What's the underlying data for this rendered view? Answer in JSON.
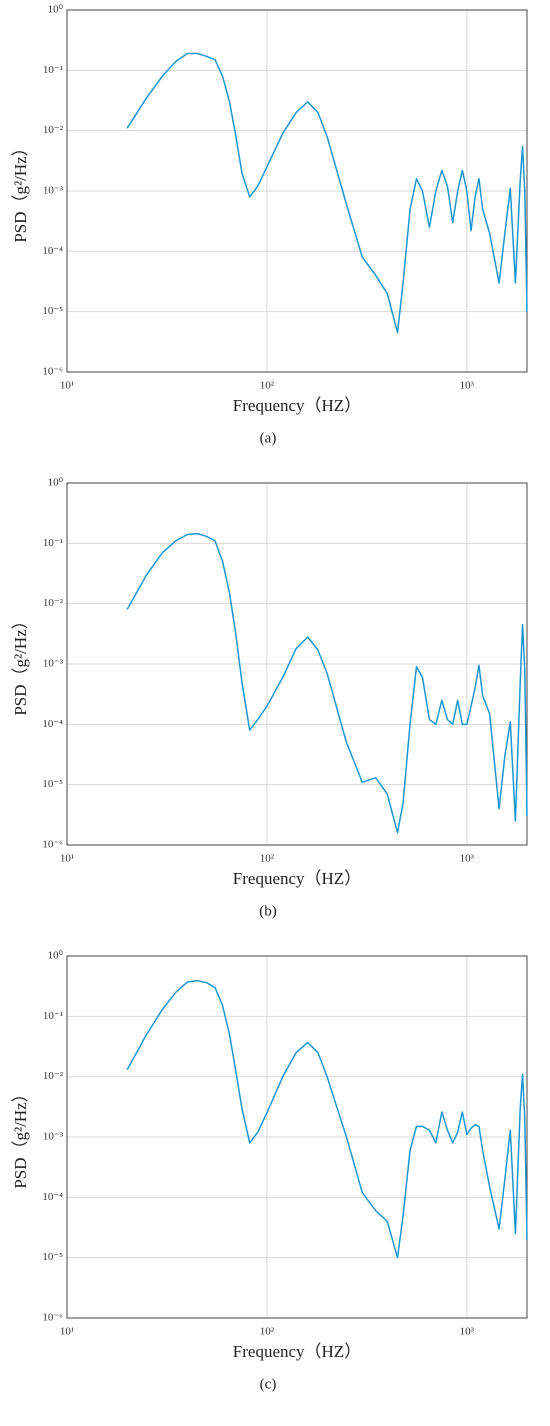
{
  "chart_data": [
    {
      "type": "line",
      "caption": "(a)",
      "xlabel": "Frequency（HZ）",
      "ylabel": "PSD（g²/Hz）",
      "color": "#1a96d2",
      "xscale": "log",
      "yscale": "log",
      "grid": true,
      "xlim": [
        10,
        2000
      ],
      "ylim": [
        1e-06,
        1
      ],
      "xticks": [
        {
          "value": 10,
          "label": "10¹"
        },
        {
          "value": 100,
          "label": "10²"
        },
        {
          "value": 1000,
          "label": "10³"
        }
      ],
      "yticks": [
        {
          "value": 1e-06,
          "label": "10⁻⁶"
        },
        {
          "value": 1e-05,
          "label": "10⁻⁵"
        },
        {
          "value": 0.0001,
          "label": "10⁻⁴"
        },
        {
          "value": 0.001,
          "label": "10⁻³"
        },
        {
          "value": 0.01,
          "label": "10⁻²"
        },
        {
          "value": 0.1,
          "label": "10⁻¹"
        },
        {
          "value": 1,
          "label": "10⁰"
        }
      ],
      "x": [
        20,
        25,
        30,
        35,
        40,
        45,
        50,
        55,
        60,
        65,
        70,
        75,
        82,
        90,
        100,
        120,
        140,
        160,
        180,
        200,
        250,
        300,
        350,
        400,
        450,
        480,
        520,
        560,
        600,
        650,
        700,
        750,
        800,
        850,
        900,
        950,
        1000,
        1050,
        1100,
        1150,
        1200,
        1300,
        1450,
        1550,
        1650,
        1750,
        1850,
        1900,
        1950,
        2000
      ],
      "values": [
        0.011,
        0.035,
        0.08,
        0.14,
        0.19,
        0.19,
        0.17,
        0.15,
        0.08,
        0.03,
        0.008,
        0.002,
        0.0008,
        0.0012,
        0.0025,
        0.009,
        0.02,
        0.03,
        0.02,
        0.008,
        0.0006,
        8e-05,
        4e-05,
        2e-05,
        4.5e-06,
        3e-05,
        0.0005,
        0.0016,
        0.001,
        0.00025,
        0.001,
        0.0022,
        0.0012,
        0.0003,
        0.001,
        0.0022,
        0.001,
        0.00022,
        0.0008,
        0.0016,
        0.0005,
        0.0002,
        3e-05,
        0.0002,
        0.0011,
        3e-05,
        0.0015,
        0.0055,
        0.001,
        1e-05
      ]
    },
    {
      "type": "line",
      "caption": "(b)",
      "xlabel": "Frequency（HZ）",
      "ylabel": "PSD（g²/Hz）",
      "color": "#1a96d2",
      "xscale": "log",
      "yscale": "log",
      "grid": true,
      "xlim": [
        10,
        2000
      ],
      "ylim": [
        1e-06,
        1
      ],
      "xticks": [
        {
          "value": 10,
          "label": "10¹"
        },
        {
          "value": 100,
          "label": "10²"
        },
        {
          "value": 1000,
          "label": "10³"
        }
      ],
      "yticks": [
        {
          "value": 1e-06,
          "label": "10⁻⁶"
        },
        {
          "value": 1e-05,
          "label": "10⁻⁵"
        },
        {
          "value": 0.0001,
          "label": "10⁻⁴"
        },
        {
          "value": 0.001,
          "label": "10⁻³"
        },
        {
          "value": 0.01,
          "label": "10⁻²"
        },
        {
          "value": 0.1,
          "label": "10⁻¹"
        },
        {
          "value": 1,
          "label": "10⁰"
        }
      ],
      "x": [
        20,
        25,
        30,
        35,
        40,
        45,
        50,
        55,
        60,
        65,
        70,
        75,
        82,
        90,
        100,
        120,
        140,
        160,
        180,
        200,
        250,
        300,
        350,
        400,
        450,
        480,
        520,
        560,
        600,
        650,
        700,
        750,
        800,
        850,
        900,
        950,
        1000,
        1050,
        1100,
        1150,
        1200,
        1300,
        1450,
        1550,
        1650,
        1750,
        1850,
        1900,
        1950,
        2000
      ],
      "values": [
        0.008,
        0.03,
        0.07,
        0.11,
        0.14,
        0.145,
        0.13,
        0.11,
        0.05,
        0.015,
        0.003,
        0.0005,
        8e-05,
        0.00012,
        0.0002,
        0.0006,
        0.0018,
        0.0028,
        0.0017,
        0.0007,
        5e-05,
        1.1e-05,
        1.3e-05,
        7e-06,
        1.6e-06,
        5e-06,
        0.0001,
        0.0009,
        0.0006,
        0.00012,
        0.0001,
        0.00025,
        0.00012,
        0.0001,
        0.00025,
        0.0001,
        0.0001,
        0.0002,
        0.0004,
        0.00095,
        0.0003,
        0.00015,
        4e-06,
        3e-05,
        0.00011,
        2.5e-06,
        0.0005,
        0.0045,
        0.0008,
        3e-06
      ]
    },
    {
      "type": "line",
      "caption": "(c)",
      "xlabel": "Frequency（HZ）",
      "ylabel": "PSD（g²/Hz）",
      "color": "#1a96d2",
      "xscale": "log",
      "yscale": "log",
      "grid": true,
      "xlim": [
        10,
        2000
      ],
      "ylim": [
        1e-06,
        1
      ],
      "xticks": [
        {
          "value": 10,
          "label": "10¹"
        },
        {
          "value": 100,
          "label": "10²"
        },
        {
          "value": 1000,
          "label": "10³"
        }
      ],
      "yticks": [
        {
          "value": 1e-06,
          "label": "10⁻⁶"
        },
        {
          "value": 1e-05,
          "label": "10⁻⁵"
        },
        {
          "value": 0.0001,
          "label": "10⁻⁴"
        },
        {
          "value": 0.001,
          "label": "10⁻³"
        },
        {
          "value": 0.01,
          "label": "10⁻²"
        },
        {
          "value": 0.1,
          "label": "10⁻¹"
        },
        {
          "value": 1,
          "label": "10⁰"
        }
      ],
      "x": [
        20,
        25,
        30,
        35,
        40,
        45,
        50,
        55,
        60,
        65,
        70,
        75,
        82,
        90,
        100,
        120,
        140,
        160,
        180,
        200,
        250,
        300,
        350,
        400,
        450,
        480,
        520,
        560,
        600,
        650,
        700,
        750,
        800,
        850,
        900,
        950,
        1000,
        1050,
        1100,
        1150,
        1200,
        1300,
        1450,
        1550,
        1650,
        1750,
        1850,
        1900,
        1950,
        2000
      ],
      "values": [
        0.013,
        0.05,
        0.13,
        0.25,
        0.37,
        0.39,
        0.36,
        0.3,
        0.15,
        0.05,
        0.012,
        0.003,
        0.0008,
        0.0012,
        0.0025,
        0.01,
        0.025,
        0.037,
        0.025,
        0.01,
        0.001,
        0.00012,
        6e-05,
        4e-05,
        1e-05,
        5e-05,
        0.0006,
        0.0015,
        0.0015,
        0.0013,
        0.0008,
        0.0026,
        0.0013,
        0.0008,
        0.0012,
        0.0026,
        0.0011,
        0.0014,
        0.0016,
        0.0015,
        0.0006,
        0.00015,
        3e-05,
        0.0002,
        0.0013,
        2.5e-05,
        0.003,
        0.011,
        0.002,
        2e-05
      ]
    }
  ]
}
